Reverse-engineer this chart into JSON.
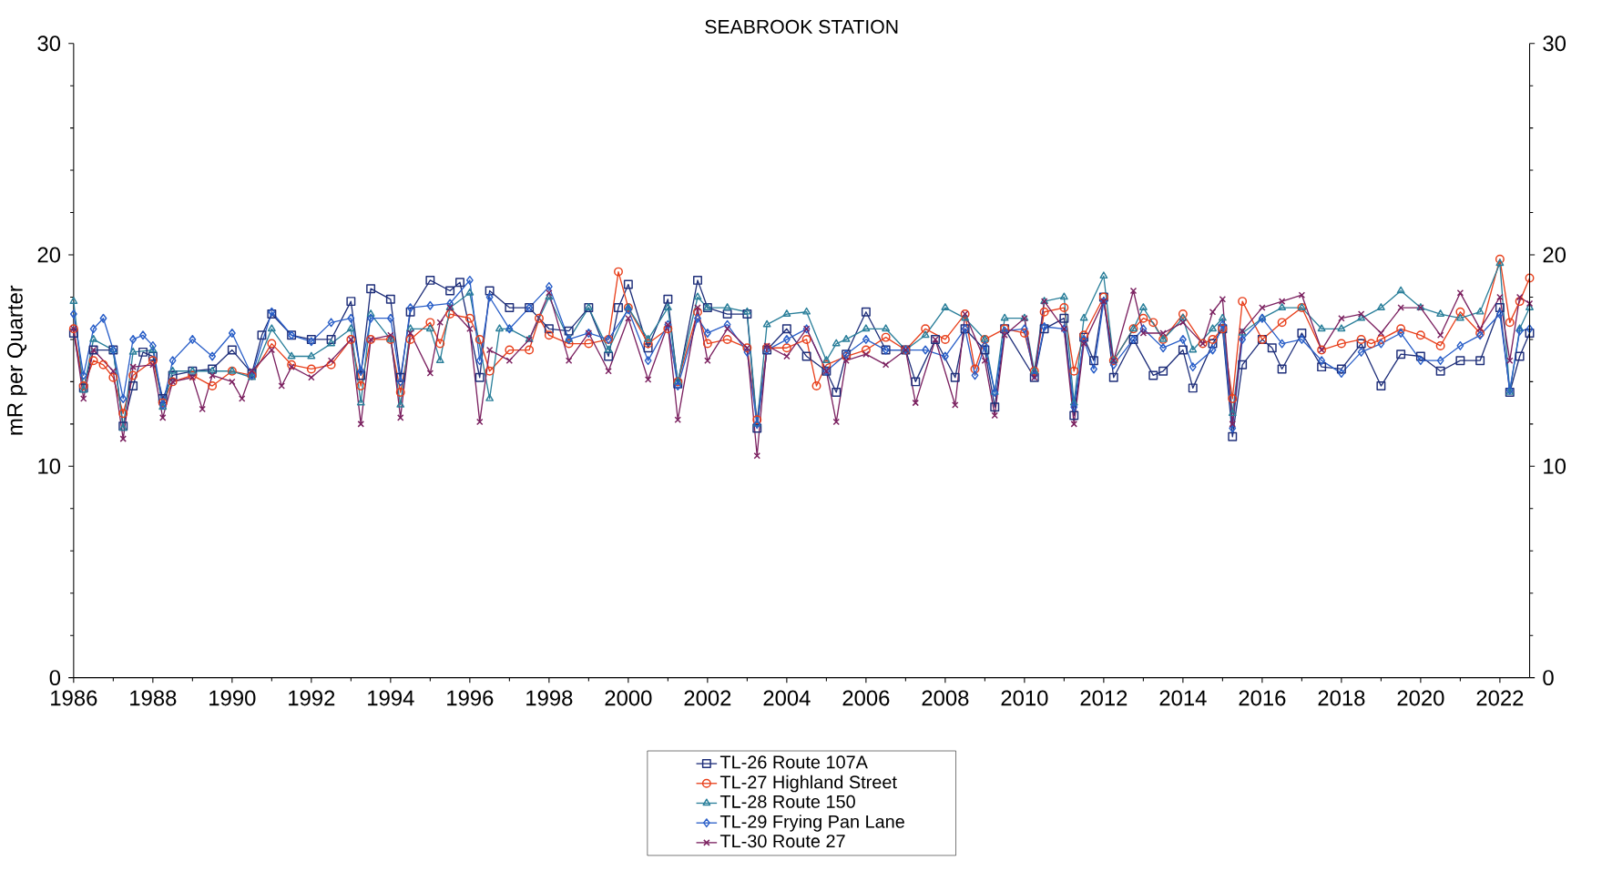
{
  "chart_data": {
    "type": "line",
    "title": "SEABROOK STATION",
    "ylabel": "mR per Quarter",
    "xlim": [
      1986,
      2022.75
    ],
    "xticks": [
      1986,
      1988,
      1990,
      1992,
      1994,
      1996,
      1998,
      2000,
      2002,
      2004,
      2006,
      2008,
      2010,
      2012,
      2014,
      2016,
      2018,
      2020,
      2022
    ],
    "ylim": [
      0,
      30
    ],
    "yticks": [
      0,
      10,
      20,
      30
    ],
    "y2lim": [
      0,
      30
    ],
    "y2ticks": [
      0,
      10,
      20,
      30
    ],
    "legend": "bottom",
    "series": [
      {
        "name": "TL-26 Route 107A",
        "color": "#1f2f7a",
        "marker": "square",
        "x": [
          1986,
          1986.25,
          1986.5,
          1987,
          1987.25,
          1987.5,
          1987.75,
          1988,
          1988.25,
          1988.5,
          1989,
          1989.5,
          1990,
          1990.5,
          1990.75,
          1991,
          1991.5,
          1992,
          1992.5,
          1993,
          1993.25,
          1993.5,
          1994,
          1994.25,
          1994.5,
          1995,
          1995.5,
          1995.75,
          1996.25,
          1996.5,
          1997,
          1997.5,
          1998,
          1998.5,
          1999,
          1999.5,
          1999.75,
          2000,
          2000.5,
          2001,
          2001.25,
          2001.75,
          2002,
          2002.5,
          2003,
          2003.25,
          2003.5,
          2004,
          2004.5,
          2005,
          2005.25,
          2005.5,
          2006,
          2006.5,
          2007,
          2007.25,
          2007.75,
          2008.25,
          2008.5,
          2009,
          2009.25,
          2009.5,
          2010.25,
          2010.5,
          2011,
          2011.25,
          2011.5,
          2011.75,
          2012,
          2012.25,
          2012.75,
          2013.25,
          2013.5,
          2014,
          2014.25,
          2014.75,
          2015,
          2015.25,
          2015.5,
          2016,
          2016.25,
          2016.5,
          2017,
          2017.5,
          2018,
          2018.5,
          2019,
          2019.5,
          2020,
          2020.5,
          2021,
          2021.5,
          2022,
          2022.25,
          2022.5,
          2022.75
        ],
        "values": [
          16.3,
          13.7,
          15.5,
          15.5,
          11.9,
          13.8,
          15.4,
          15.2,
          13.2,
          14.3,
          14.5,
          14.6,
          15.5,
          14.4,
          16.2,
          17.2,
          16.2,
          16,
          16,
          17.8,
          14.3,
          18.4,
          17.9,
          14.2,
          17.3,
          18.8,
          18.3,
          18.7,
          14.2,
          18.3,
          17.5,
          17.5,
          16.5,
          16.4,
          17.5,
          15.2,
          17.5,
          18.6,
          15.6,
          17.9,
          13.9,
          18.8,
          17.5,
          17.2,
          17.2,
          11.8,
          15.5,
          16.5,
          15.2,
          14.5,
          13.5,
          15.3,
          17.3,
          15.5,
          15.5,
          14,
          16,
          14.2,
          16.5,
          15.5,
          12.8,
          16.5,
          14.2,
          16.5,
          17,
          12.4,
          16.1,
          15,
          18,
          14.2,
          16,
          14.3,
          14.5,
          15.5,
          13.7,
          15.8,
          16.5,
          11.4,
          14.8,
          16,
          15.6,
          14.6,
          16.3,
          14.7,
          14.6,
          15.8,
          13.8,
          15.3,
          15.2,
          14.5,
          15,
          15,
          17.5,
          13.5,
          15.2,
          16.3
        ]
      },
      {
        "name": "TL-27 Highland Street",
        "color": "#e8401c",
        "marker": "circle",
        "x": [
          1986,
          1986.25,
          1986.5,
          1986.75,
          1987,
          1987.25,
          1987.5,
          1988,
          1988.25,
          1988.5,
          1989,
          1989.5,
          1990,
          1990.5,
          1991,
          1991.5,
          1992,
          1992.5,
          1993,
          1993.25,
          1993.5,
          1994,
          1994.25,
          1994.5,
          1995,
          1995.25,
          1995.5,
          1996,
          1996.25,
          1996.5,
          1997,
          1997.5,
          1997.75,
          1998,
          1998.5,
          1999,
          1999.5,
          1999.75,
          2000,
          2000.5,
          2001,
          2001.25,
          2001.75,
          2002,
          2002.5,
          2003,
          2003.25,
          2003.5,
          2004,
          2004.5,
          2004.75,
          2005,
          2005.5,
          2006,
          2006.5,
          2007,
          2007.5,
          2008,
          2008.5,
          2008.75,
          2009,
          2009.5,
          2010,
          2010.25,
          2010.5,
          2011,
          2011.25,
          2011.5,
          2012,
          2012.25,
          2012.75,
          2013,
          2013.25,
          2013.5,
          2014,
          2014.5,
          2014.75,
          2015,
          2015.25,
          2015.5,
          2016,
          2016.5,
          2017,
          2017.5,
          2018,
          2018.5,
          2018.75,
          2019,
          2019.5,
          2020,
          2020.5,
          2021,
          2021.5,
          2022,
          2022.25,
          2022.5,
          2022.75
        ],
        "values": [
          16.5,
          13.8,
          15,
          14.8,
          14.2,
          12.5,
          14.3,
          15,
          13,
          14,
          14.3,
          13.8,
          14.5,
          14.3,
          15.8,
          14.8,
          14.6,
          14.8,
          16,
          13.8,
          16,
          16,
          13.5,
          16,
          16.8,
          15.8,
          17.2,
          17,
          16,
          14.5,
          15.5,
          15.5,
          17,
          16.2,
          15.8,
          15.8,
          16,
          19.2,
          17.5,
          15.8,
          16.5,
          14,
          17.3,
          15.8,
          16,
          15.6,
          12.2,
          15.6,
          15.6,
          16,
          13.8,
          14.8,
          15.2,
          15.5,
          16.1,
          15.5,
          16.5,
          16,
          17.2,
          14.6,
          16,
          16.5,
          16.3,
          14.5,
          17.3,
          17.5,
          14.5,
          16.2,
          18,
          15,
          16.5,
          17,
          16.8,
          16,
          17.2,
          15.8,
          16,
          16.5,
          13.2,
          17.8,
          16,
          16.8,
          17.5,
          15.5,
          15.8,
          16,
          15.8,
          16,
          16.5,
          16.2,
          15.7,
          17.3,
          16.3,
          19.8,
          16.8,
          17.8,
          18.9
        ]
      },
      {
        "name": "TL-28 Route 150",
        "color": "#2a7f9a",
        "marker": "triangle",
        "x": [
          1986,
          1986.25,
          1986.5,
          1987,
          1987.25,
          1987.5,
          1988,
          1988.25,
          1988.5,
          1989,
          1989.5,
          1990,
          1990.5,
          1991,
          1991.5,
          1992,
          1992.5,
          1993,
          1993.25,
          1993.5,
          1994,
          1994.25,
          1994.5,
          1995,
          1995.25,
          1995.5,
          1996,
          1996.5,
          1996.75,
          1997,
          1997.5,
          1998,
          1998.5,
          1999,
          1999.5,
          2000,
          2000.5,
          2001,
          2001.25,
          2001.75,
          2002,
          2002.5,
          2003,
          2003.25,
          2003.5,
          2004,
          2004.5,
          2005,
          2005.25,
          2005.5,
          2006,
          2006.5,
          2007,
          2007.5,
          2008,
          2008.5,
          2009,
          2009.25,
          2009.5,
          2010,
          2010.25,
          2010.5,
          2011,
          2011.25,
          2011.5,
          2012,
          2012.25,
          2012.75,
          2013,
          2013.5,
          2014,
          2014.25,
          2014.75,
          2015,
          2015.25,
          2015.5,
          2016,
          2016.5,
          2017,
          2017.5,
          2018,
          2018.5,
          2019,
          2019.5,
          2020,
          2020.5,
          2021,
          2021.5,
          2022,
          2022.25,
          2022.5,
          2022.75
        ],
        "values": [
          17.8,
          13.6,
          16,
          15.5,
          11.8,
          15.4,
          15.5,
          12.8,
          14.5,
          14.5,
          14.5,
          14.5,
          14.2,
          16.5,
          15.2,
          15.2,
          15.8,
          16.5,
          13,
          17.2,
          16,
          12.9,
          16.5,
          16.5,
          15,
          17.5,
          18.2,
          13.2,
          16.5,
          16.5,
          16,
          18,
          16,
          17.5,
          15.5,
          17.5,
          16,
          17.5,
          14,
          18,
          17.5,
          17.5,
          17.3,
          12,
          16.7,
          17.2,
          17.3,
          15,
          15.8,
          16,
          16.5,
          16.5,
          15.5,
          16.2,
          17.5,
          17,
          16,
          13.5,
          17,
          17,
          14.5,
          17.8,
          18,
          13,
          17,
          19,
          15,
          16.5,
          17.5,
          16,
          17,
          15.5,
          16.5,
          17,
          12.5,
          16.3,
          17,
          17.5,
          17.5,
          16.5,
          16.5,
          17,
          17.5,
          18.3,
          17.5,
          17.2,
          17,
          17.3,
          19.6,
          13.5,
          16.5,
          17.5
        ]
      },
      {
        "name": "TL-29 Frying Pan Lane",
        "color": "#2a5fc8",
        "marker": "diamond",
        "x": [
          1986,
          1986.25,
          1986.5,
          1986.75,
          1987,
          1987.25,
          1987.5,
          1987.75,
          1988,
          1988.25,
          1988.5,
          1989,
          1989.5,
          1990,
          1990.5,
          1991,
          1991.5,
          1992,
          1992.5,
          1993,
          1993.25,
          1993.5,
          1994,
          1994.25,
          1994.5,
          1995,
          1995.5,
          1996,
          1996.25,
          1996.5,
          1997,
          1997.5,
          1998,
          1998.5,
          1999,
          1999.5,
          2000,
          2000.5,
          2001,
          2001.25,
          2001.75,
          2002,
          2002.5,
          2003,
          2003.25,
          2003.5,
          2004,
          2004.5,
          2005,
          2005.5,
          2006,
          2006.5,
          2007,
          2007.5,
          2008,
          2008.5,
          2008.75,
          2009,
          2009.25,
          2009.5,
          2010,
          2010.25,
          2010.5,
          2011,
          2011.25,
          2011.5,
          2011.75,
          2012,
          2012.25,
          2012.75,
          2013,
          2013.5,
          2014,
          2014.25,
          2014.75,
          2015,
          2015.25,
          2015.5,
          2016,
          2016.5,
          2017,
          2017.5,
          2018,
          2018.5,
          2019,
          2019.5,
          2020,
          2020.5,
          2021,
          2021.5,
          2022,
          2022.25,
          2022.5,
          2022.75
        ],
        "values": [
          17.2,
          14.3,
          16.5,
          17,
          15.5,
          13.2,
          16,
          16.2,
          15.7,
          12.9,
          15,
          16,
          15.2,
          16.3,
          14.3,
          17.3,
          16.2,
          15.9,
          16.8,
          17,
          14.5,
          17,
          17,
          14,
          17.5,
          17.6,
          17.7,
          18.8,
          15,
          18,
          16.5,
          17.5,
          18.5,
          16,
          16.3,
          16,
          17.4,
          15,
          16.7,
          13.8,
          17,
          16.3,
          16.7,
          15.4,
          12,
          15.5,
          16,
          16.5,
          14.5,
          15.3,
          16,
          15.5,
          15.5,
          15.5,
          15.2,
          16.5,
          14.3,
          15.7,
          13.5,
          16.4,
          16.5,
          14.3,
          16.6,
          16.5,
          12.8,
          16,
          14.6,
          17.8,
          14.8,
          16,
          16.5,
          15.6,
          16,
          14.7,
          15.5,
          16.7,
          11.8,
          16,
          17,
          15.8,
          16,
          15,
          14.4,
          15.4,
          15.8,
          16.3,
          15,
          15,
          15.7,
          16.2,
          17.2,
          13.6,
          16.4,
          16.5
        ]
      },
      {
        "name": "TL-30 Route 27",
        "color": "#7b2160",
        "marker": "cross",
        "x": [
          1986,
          1986.25,
          1986.5,
          1987,
          1987.25,
          1987.5,
          1988,
          1988.25,
          1988.5,
          1989,
          1989.25,
          1989.5,
          1990,
          1990.25,
          1990.5,
          1991,
          1991.25,
          1991.5,
          1992,
          1992.5,
          1993,
          1993.25,
          1993.5,
          1994,
          1994.25,
          1994.5,
          1995,
          1995.25,
          1995.5,
          1996,
          1996.25,
          1996.5,
          1997,
          1997.5,
          1998,
          1998.5,
          1999,
          1999.5,
          2000,
          2000.5,
          2001,
          2001.25,
          2001.75,
          2002,
          2002.5,
          2003,
          2003.25,
          2003.5,
          2004,
          2004.5,
          2005,
          2005.25,
          2005.5,
          2006,
          2006.5,
          2007,
          2007.25,
          2007.75,
          2008.25,
          2008.5,
          2009,
          2009.25,
          2009.5,
          2010,
          2010.25,
          2010.5,
          2011,
          2011.25,
          2011.5,
          2012,
          2012.25,
          2012.75,
          2013,
          2013.5,
          2014,
          2014.5,
          2014.75,
          2015,
          2015.25,
          2015.5,
          2016,
          2016.5,
          2017,
          2017.5,
          2018,
          2018.5,
          2019,
          2019.5,
          2020,
          2020.5,
          2021,
          2021.5,
          2022,
          2022.25,
          2022.5,
          2022.75
        ],
        "values": [
          16.5,
          13.2,
          15.5,
          14.5,
          11.3,
          14.7,
          14.8,
          12.3,
          14,
          14.2,
          12.7,
          14.3,
          14,
          13.2,
          14.5,
          15.5,
          13.8,
          14.7,
          14.2,
          15,
          16,
          12,
          16,
          16.2,
          12.3,
          16.3,
          14.4,
          16.8,
          17.5,
          16.5,
          12.1,
          15.5,
          15,
          16,
          18.2,
          15,
          16.3,
          14.5,
          17,
          14.1,
          16.7,
          12.2,
          17.5,
          15,
          16.5,
          15.6,
          10.5,
          15.7,
          15.2,
          16.5,
          14.5,
          12.1,
          15,
          15.3,
          14.8,
          15.5,
          13,
          16,
          12.9,
          17.2,
          15,
          12.4,
          16.2,
          17,
          14.2,
          17.8,
          16.5,
          12,
          15.8,
          17.8,
          15,
          18.3,
          16.3,
          16.3,
          16.8,
          15.8,
          17.3,
          17.9,
          12,
          16.4,
          17.5,
          17.8,
          18.1,
          15.5,
          17,
          17.2,
          16.3,
          17.5,
          17.5,
          16.2,
          18.2,
          16.5,
          18,
          15,
          18,
          17.7
        ]
      }
    ]
  }
}
